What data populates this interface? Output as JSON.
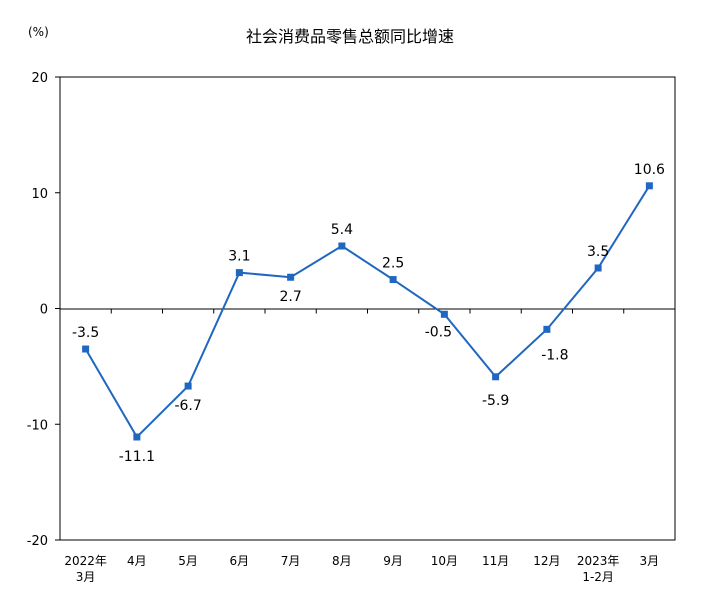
{
  "chart_data": {
    "type": "line",
    "title": "社会消费品零售总额同比增速",
    "unit_label": "(%)",
    "xlabel": "",
    "ylabel": "",
    "ylim": [
      -20,
      20
    ],
    "yticks": [
      20,
      10,
      0,
      -10,
      -20
    ],
    "grid": false,
    "legend": "none",
    "categories": [
      [
        "2022年",
        "3月"
      ],
      [
        "4月"
      ],
      [
        "5月"
      ],
      [
        "6月"
      ],
      [
        "7月"
      ],
      [
        "8月"
      ],
      [
        "9月"
      ],
      [
        "10月"
      ],
      [
        "11月"
      ],
      [
        "12月"
      ],
      [
        "2023年",
        "1-2月"
      ],
      [
        "3月"
      ]
    ],
    "series": [
      {
        "values": [
          -3.5,
          -11.1,
          -6.7,
          3.1,
          2.7,
          5.4,
          2.5,
          -0.5,
          -5.9,
          -1.8,
          3.5,
          10.6
        ],
        "labels": [
          "-3.5",
          "-11.1",
          "-6.7",
          "3.1",
          "2.7",
          "5.4",
          "2.5",
          "-0.5",
          "-5.9",
          "-1.8",
          "3.5",
          "10.6"
        ]
      }
    ],
    "colors": {
      "line": "#1f67c0",
      "marker": "#1f67c0"
    }
  }
}
